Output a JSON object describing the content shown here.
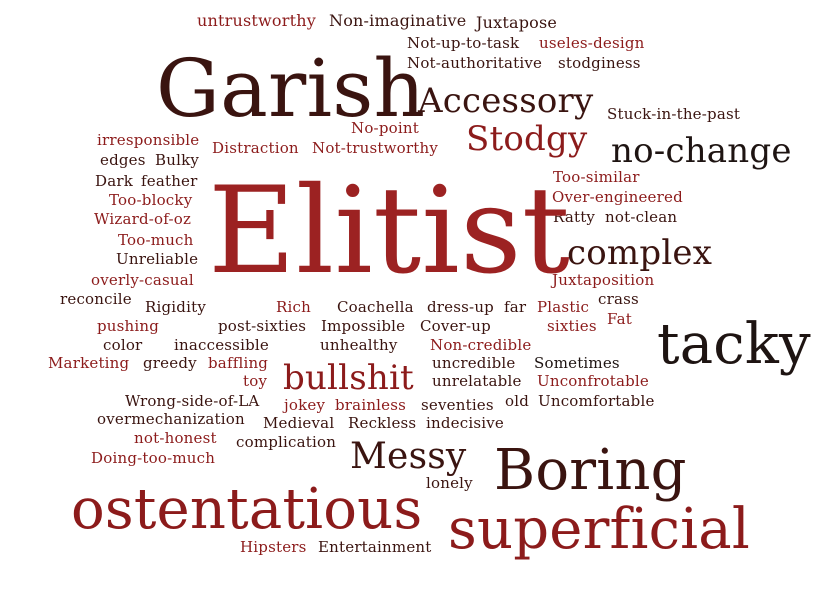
{
  "words": {
    "untrustworthy": "untrustworthy",
    "non_imaginative": "Non-imaginative",
    "juxtapose": "Juxtapose",
    "not_up_to_task": "Not-up-to-task",
    "useles_design": "useles-design",
    "not_authoritative": "Not-authoritative",
    "stodginess": "stodginess",
    "garish": "Garish",
    "accessory": "Accessory",
    "stuck_in_the_past": "Stuck-in-the-past",
    "no_point": "No-point",
    "stodgy": "Stodgy",
    "irresponsible": "irresponsible",
    "distraction": "Distraction",
    "not_trustworthy": "Not-trustworthy",
    "no_change": "no-change",
    "edges": "edges",
    "bulky": "Bulky",
    "dark": "Dark",
    "feather": "feather",
    "too_similar": "Too-similar",
    "too_blocky": "Too-blocky",
    "over_engineered": "Over-engineered",
    "wizard_of_oz": "Wizard-of-oz",
    "ratty": "Ratty",
    "not_clean": "not-clean",
    "elitist": "Elitist",
    "too_much": "Too-much",
    "complex": "complex",
    "unreliable": "Unreliable",
    "overly_casual": "overly-casual",
    "juxtaposition": "Juxtaposition",
    "reconcile": "reconcile",
    "crass": "crass",
    "rigidity": "Rigidity",
    "rich": "Rich",
    "coachella": "Coachella",
    "dress_up": "dress-up",
    "far": "far",
    "plastic": "Plastic",
    "fat": "Fat",
    "pushing": "pushing",
    "post_sixties": "post-sixties",
    "impossible": "Impossible",
    "cover_up": "Cover-up",
    "sixties": "sixties",
    "tacky": "tacky",
    "color": "color",
    "inaccessible": "inaccessible",
    "unhealthy": "unhealthy",
    "non_credible": "Non-credible",
    "marketing": "Marketing",
    "greedy": "greedy",
    "baffling": "baffling",
    "uncredible": "uncredible",
    "sometimes": "Sometimes",
    "bullshit": "bullshit",
    "toy": "toy",
    "unrelatable": "unrelatable",
    "unconfrotable": "Unconfrotable",
    "wrong_side_of_la": "Wrong-side-of-LA",
    "jokey": "jokey",
    "brainless": "brainless",
    "seventies": "seventies",
    "old": "old",
    "uncomfortable": "Uncomfortable",
    "overmechanization": "overmechanization",
    "medieval": "Medieval",
    "reckless": "Reckless",
    "indecisive": "indecisive",
    "not_honest": "not-honest",
    "complication": "complication",
    "messy": "Messy",
    "doing_too_much": "Doing-too-much",
    "boring": "Boring",
    "lonely": "lonely",
    "ostentatious": "ostentatious",
    "superficial": "superficial",
    "hipsters": "Hipsters",
    "entertainment": "Entertainment"
  }
}
